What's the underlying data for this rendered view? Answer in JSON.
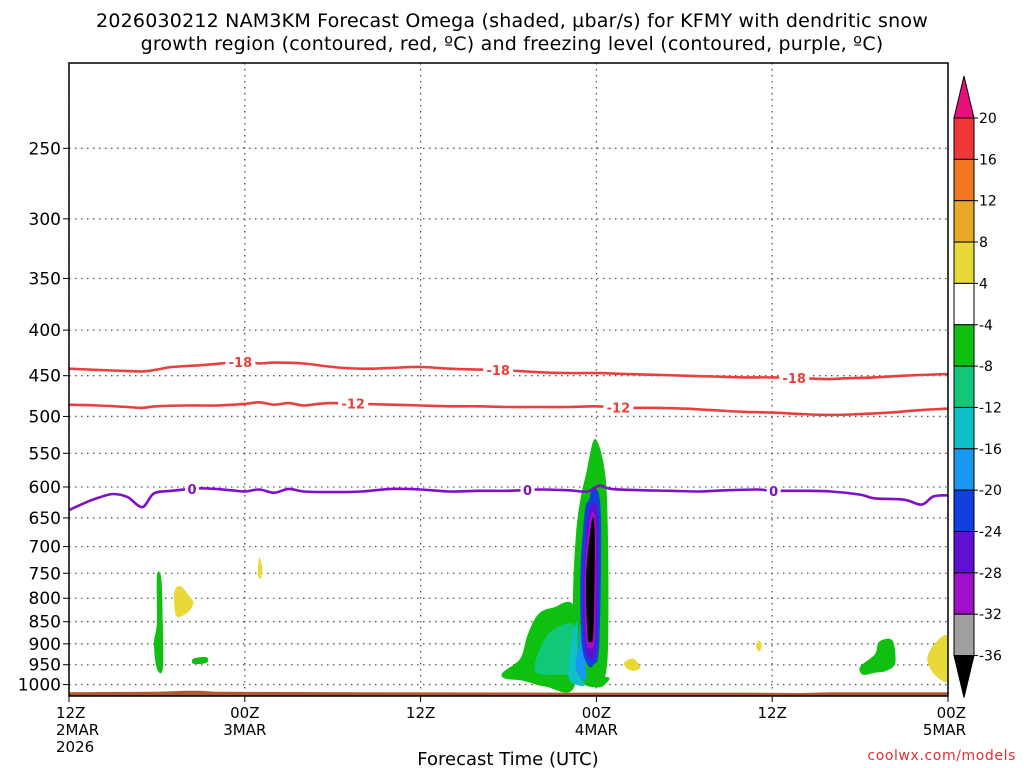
{
  "title_line1": "2026030212 NAM3KM Forecast Omega (shaded, µbar/s) for KFMY with dendritic snow",
  "title_line2": "growth region (contoured, red, ºC) and freezing level (contoured, purple, ºC)",
  "xlabel": "Forecast Time (UTC)",
  "credit": "coolwx.com/models",
  "chart_data": {
    "type": "heatmap",
    "title": "2026030212 NAM3KM Forecast Omega (shaded, µbar/s) for KFMY with dendritic snow growth region (contoured, red, ºC) and freezing level (contoured, purple, ºC)",
    "xlabel": "Forecast Time (UTC)",
    "ylabel": "",
    "x_unit": "forecast hour",
    "xlim": [
      0,
      60
    ],
    "y_scale": "log-pressure",
    "ylim": [
      1030,
      200
    ],
    "y_ticks": [
      250,
      300,
      350,
      400,
      450,
      500,
      550,
      600,
      650,
      700,
      750,
      800,
      850,
      900,
      950,
      1000
    ],
    "x_ticks": [
      {
        "hour": 0,
        "lines": [
          "12Z",
          "2MAR",
          "2026"
        ]
      },
      {
        "hour": 12,
        "lines": [
          "00Z",
          "3MAR"
        ]
      },
      {
        "hour": 24,
        "lines": [
          "12Z"
        ]
      },
      {
        "hour": 36,
        "lines": [
          "00Z",
          "4MAR"
        ]
      },
      {
        "hour": 48,
        "lines": [
          "12Z"
        ]
      },
      {
        "hour": 60,
        "lines": [
          "00Z",
          "5MAR"
        ]
      }
    ],
    "grid": true,
    "colorbar": {
      "labels": [
        "20",
        "16",
        "12",
        "8",
        "4",
        "-4",
        "-8",
        "-12",
        "-16",
        "-20",
        "-24",
        "-28",
        "-32",
        "-36"
      ],
      "levels": [
        20,
        16,
        12,
        8,
        4,
        -4,
        -8,
        -12,
        -16,
        -20,
        -24,
        -28,
        -32,
        -36
      ],
      "colors": [
        "#e8107a",
        "#f03838",
        "#f07820",
        "#e8a828",
        "#e8d838",
        "#ffffff",
        "#10c010",
        "#10c878",
        "#10c0c8",
        "#1898f0",
        "#1040e0",
        "#6010d0",
        "#a010c8",
        "#a0a0a0",
        "#000000"
      ]
    },
    "contours": [
      {
        "label": "-18",
        "color": "#e84040",
        "label_hours": [
          11.7,
          29.3,
          49.5
        ],
        "points": [
          [
            0,
            442
          ],
          [
            3,
            444
          ],
          [
            5,
            445
          ],
          [
            6,
            443
          ],
          [
            7,
            440
          ],
          [
            9,
            438
          ],
          [
            11,
            435
          ],
          [
            12,
            434
          ],
          [
            13,
            436
          ],
          [
            14,
            435
          ],
          [
            16,
            436
          ],
          [
            18,
            440
          ],
          [
            20,
            442
          ],
          [
            22,
            441
          ],
          [
            24,
            440
          ],
          [
            26,
            442
          ],
          [
            28,
            443
          ],
          [
            30,
            444
          ],
          [
            32,
            446
          ],
          [
            34,
            447
          ],
          [
            36,
            447
          ],
          [
            38,
            448
          ],
          [
            40,
            449
          ],
          [
            42,
            450
          ],
          [
            44,
            451
          ],
          [
            46,
            452
          ],
          [
            48,
            452
          ],
          [
            50,
            453
          ],
          [
            52,
            454
          ],
          [
            53,
            453
          ],
          [
            55,
            452
          ],
          [
            57,
            450
          ],
          [
            60,
            448
          ]
        ]
      },
      {
        "label": "-12",
        "color": "#e84040",
        "label_hours": [
          19.4,
          37.5
        ],
        "points": [
          [
            0,
            485
          ],
          [
            2,
            486
          ],
          [
            4,
            488
          ],
          [
            5,
            489
          ],
          [
            6,
            487
          ],
          [
            8,
            486
          ],
          [
            10,
            486
          ],
          [
            12,
            484
          ],
          [
            13,
            482
          ],
          [
            14,
            485
          ],
          [
            15,
            483
          ],
          [
            16,
            486
          ],
          [
            17,
            484
          ],
          [
            18,
            483
          ],
          [
            20,
            484
          ],
          [
            22,
            485
          ],
          [
            24,
            486
          ],
          [
            26,
            487
          ],
          [
            28,
            487
          ],
          [
            30,
            488
          ],
          [
            32,
            488
          ],
          [
            34,
            488
          ],
          [
            36,
            487
          ],
          [
            38,
            489
          ],
          [
            40,
            489
          ],
          [
            42,
            490
          ],
          [
            44,
            492
          ],
          [
            46,
            494
          ],
          [
            48,
            495
          ],
          [
            50,
            497
          ],
          [
            52,
            498
          ],
          [
            54,
            497
          ],
          [
            56,
            495
          ],
          [
            58,
            492
          ],
          [
            60,
            490
          ]
        ]
      },
      {
        "label": "0",
        "color": "#8010c8",
        "label_hours": [
          8.4,
          31.3,
          48.1
        ],
        "points": [
          [
            0,
            637
          ],
          [
            1,
            626
          ],
          [
            2,
            617
          ],
          [
            3,
            611
          ],
          [
            4,
            616
          ],
          [
            5,
            632
          ],
          [
            5.8,
            610
          ],
          [
            7,
            606
          ],
          [
            9,
            602
          ],
          [
            11,
            605
          ],
          [
            12,
            607
          ],
          [
            13,
            604
          ],
          [
            14,
            609
          ],
          [
            15,
            603
          ],
          [
            16,
            607
          ],
          [
            18,
            608
          ],
          [
            20,
            607
          ],
          [
            22,
            603
          ],
          [
            24,
            604
          ],
          [
            26,
            607
          ],
          [
            28,
            606
          ],
          [
            30,
            606
          ],
          [
            32,
            604
          ],
          [
            34,
            605
          ],
          [
            35.4,
            607
          ],
          [
            36.2,
            598
          ],
          [
            37,
            603
          ],
          [
            39,
            605
          ],
          [
            41,
            606
          ],
          [
            43,
            607
          ],
          [
            45,
            605
          ],
          [
            47,
            604
          ],
          [
            48,
            606
          ],
          [
            50,
            606
          ],
          [
            52,
            607
          ],
          [
            54,
            612
          ],
          [
            55,
            618
          ],
          [
            57,
            620
          ],
          [
            58.2,
            628
          ],
          [
            59,
            615
          ],
          [
            60,
            613
          ]
        ]
      }
    ],
    "omega_areas": [
      {
        "value": -8,
        "color": "#10c010",
        "points": [
          [
            35.2,
            1000
          ],
          [
            34.5,
            960
          ],
          [
            34.4,
            800
          ],
          [
            34.6,
            680
          ],
          [
            34.9,
            620
          ],
          [
            35.3,
            580
          ],
          [
            35.9,
            530
          ],
          [
            36.6,
            580
          ],
          [
            36.8,
            700
          ],
          [
            36.8,
            900
          ],
          [
            36.6,
            980
          ],
          [
            36.2,
            1005
          ]
        ]
      },
      {
        "value": -8,
        "color": "#10c010",
        "points": [
          [
            29.6,
            970
          ],
          [
            30.8,
            935
          ],
          [
            31.3,
            880
          ],
          [
            32,
            835
          ],
          [
            33,
            820
          ],
          [
            34.5,
            820
          ],
          [
            34.5,
            1005
          ],
          [
            32.5,
            1005
          ],
          [
            31,
            990
          ],
          [
            29.8,
            985
          ]
        ]
      },
      {
        "value": -12,
        "color": "#10c878",
        "points": [
          [
            31.8,
            965
          ],
          [
            32.3,
            900
          ],
          [
            33.2,
            865
          ],
          [
            34.5,
            860
          ],
          [
            34.6,
            960
          ],
          [
            33.2,
            975
          ]
        ]
      },
      {
        "value": -16,
        "color": "#10c0c8",
        "points": [
          [
            34.1,
            980
          ],
          [
            34.3,
            900
          ],
          [
            34.7,
            850
          ],
          [
            34.7,
            960
          ],
          [
            35.2,
            1000
          ],
          [
            34.6,
            1000
          ]
        ]
      },
      {
        "value": -20,
        "color": "#1898f0",
        "points": [
          [
            34.6,
            960
          ],
          [
            34.8,
            900
          ],
          [
            35,
            850
          ],
          [
            35.3,
            960
          ],
          [
            35.2,
            990
          ]
        ]
      },
      {
        "value": -24,
        "color": "#1040e0",
        "points": [
          [
            35,
            900
          ],
          [
            34.9,
            760
          ],
          [
            35.2,
            640
          ],
          [
            35.5,
            620
          ],
          [
            35.8,
            600
          ],
          [
            36.3,
            640
          ],
          [
            36.2,
            900
          ],
          [
            35.8,
            950
          ],
          [
            35.4,
            950
          ]
        ]
      },
      {
        "value": -28,
        "color": "#6010d0",
        "points": [
          [
            35.2,
            900
          ],
          [
            35.1,
            760
          ],
          [
            35.4,
            650
          ],
          [
            35.8,
            625
          ],
          [
            36.1,
            660
          ],
          [
            36.0,
            900
          ],
          [
            35.6,
            935
          ]
        ]
      },
      {
        "value": -32,
        "color": "#a010c8",
        "points": [
          [
            35.3,
            890
          ],
          [
            35.2,
            760
          ],
          [
            35.5,
            660
          ],
          [
            35.8,
            640
          ],
          [
            36.0,
            680
          ],
          [
            35.9,
            880
          ],
          [
            35.6,
            910
          ]
        ]
      },
      {
        "value": -36,
        "color": "#000000",
        "points": [
          [
            35.4,
            880
          ],
          [
            35.3,
            760
          ],
          [
            35.6,
            670
          ],
          [
            35.8,
            650
          ],
          [
            35.9,
            700
          ],
          [
            35.8,
            870
          ],
          [
            35.6,
            895
          ]
        ]
      },
      {
        "value": -8,
        "color": "#10c010",
        "points": [
          [
            6.0,
            755
          ],
          [
            6.3,
            760
          ],
          [
            6.4,
            850
          ],
          [
            6.4,
            960
          ],
          [
            6.0,
            960
          ],
          [
            5.8,
            900
          ],
          [
            6.0,
            850
          ]
        ]
      },
      {
        "value": -8,
        "color": "#10c010",
        "points": [
          [
            8.5,
            935
          ],
          [
            9.4,
            932
          ],
          [
            9.4,
            945
          ],
          [
            8.5,
            948
          ]
        ]
      },
      {
        "value": -8,
        "color": "#10c010",
        "points": [
          [
            36.0,
            985
          ],
          [
            36.5,
            980
          ],
          [
            36.9,
            985
          ],
          [
            36.4,
            1005
          ],
          [
            36,
            1005
          ]
        ]
      },
      {
        "value": -8,
        "color": "#10c010",
        "points": [
          [
            54.0,
            955
          ],
          [
            55,
            925
          ],
          [
            55.3,
            895
          ],
          [
            56.2,
            892
          ],
          [
            56.4,
            945
          ],
          [
            55.8,
            965
          ],
          [
            55,
            970
          ],
          [
            54.2,
            975
          ]
        ]
      },
      {
        "value": 4,
        "color": "#e8d838",
        "points": [
          [
            7.2,
            785
          ],
          [
            7.6,
            775
          ],
          [
            8.2,
            795
          ],
          [
            8.5,
            810
          ],
          [
            8.1,
            830
          ],
          [
            7.4,
            840
          ],
          [
            7.2,
            820
          ]
        ]
      },
      {
        "value": 4,
        "color": "#e8d838",
        "points": [
          [
            12.9,
            740
          ],
          [
            13,
            720
          ],
          [
            13.2,
            740
          ],
          [
            13.1,
            760
          ],
          [
            12.9,
            755
          ]
        ]
      },
      {
        "value": 4,
        "color": "#e8d838",
        "points": [
          [
            37.9,
            945
          ],
          [
            38.5,
            935
          ],
          [
            39.0,
            955
          ],
          [
            38.6,
            965
          ],
          [
            38.1,
            960
          ]
        ]
      },
      {
        "value": 4,
        "color": "#e8d838",
        "points": [
          [
            46.9,
            905
          ],
          [
            47.1,
            892
          ],
          [
            47.3,
            905
          ],
          [
            47.1,
            918
          ]
        ]
      },
      {
        "value": 4,
        "color": "#e8d838",
        "points": [
          [
            58.6,
            930
          ],
          [
            59.2,
            895
          ],
          [
            60,
            885
          ],
          [
            60,
            985
          ],
          [
            59.4,
            985
          ],
          [
            58.8,
            960
          ]
        ]
      }
    ],
    "surface_fill_color": "#b05a30"
  }
}
